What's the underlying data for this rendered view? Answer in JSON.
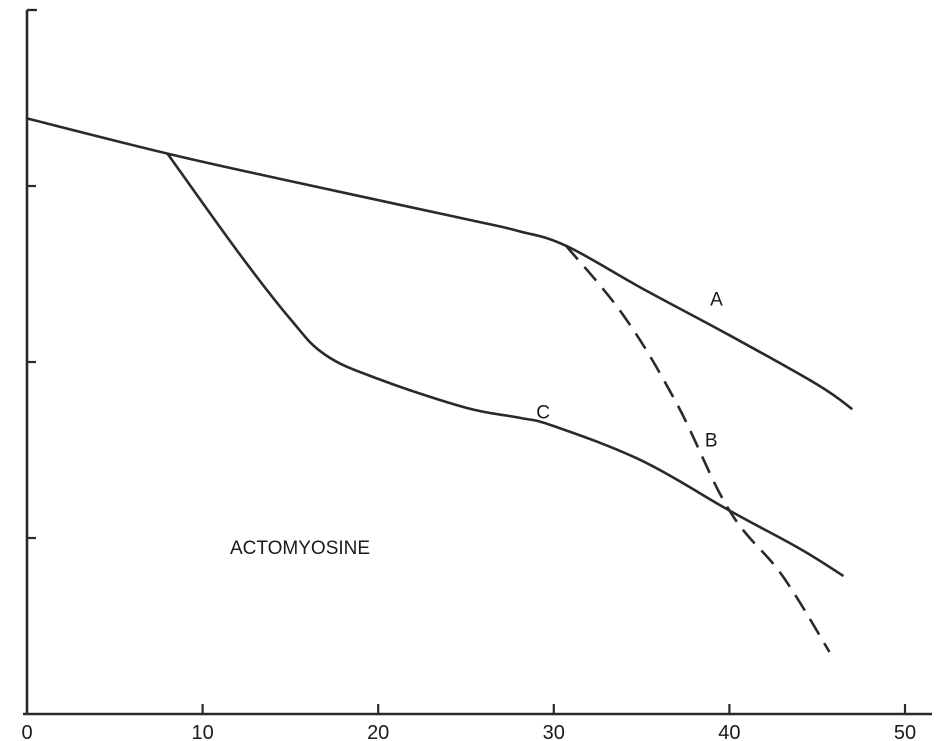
{
  "chart_data": {
    "type": "line",
    "title": "",
    "xlabel": "",
    "ylabel": "",
    "xlim": [
      0,
      50
    ],
    "ylim": [
      0,
      100
    ],
    "x_ticks": [
      0,
      10,
      20,
      30,
      40,
      50
    ],
    "x_tick_labels": [
      "0",
      "10",
      "20",
      "30",
      "40",
      "50"
    ],
    "y_ticks": [
      25,
      50,
      75,
      100
    ],
    "grid": false,
    "annotation": "ACTOMYOSINE",
    "line_color": "#2a2a2a",
    "series": [
      {
        "name": "A",
        "style": "solid",
        "x": [
          0,
          8,
          15,
          25,
          28,
          30.7,
          35,
          40,
          45,
          47
        ],
        "y": [
          84.6,
          79.6,
          75.7,
          70.3,
          68.6,
          66.5,
          60.5,
          53.8,
          46.8,
          43.3
        ]
      },
      {
        "name": "B",
        "style": "dashed",
        "x": [
          30.7,
          34,
          37,
          40,
          43,
          45.7
        ],
        "y": [
          66.5,
          56.5,
          44.1,
          28.9,
          19.7,
          8.8
        ]
      },
      {
        "name": "C",
        "style": "solid",
        "x": [
          8,
          12,
          15,
          17,
          20,
          25,
          28,
          30,
          35,
          40,
          44,
          46.5
        ],
        "y": [
          79.6,
          65.7,
          56.1,
          51.0,
          47.6,
          43.5,
          42.1,
          40.9,
          36.0,
          28.9,
          23.5,
          19.6
        ]
      }
    ]
  }
}
